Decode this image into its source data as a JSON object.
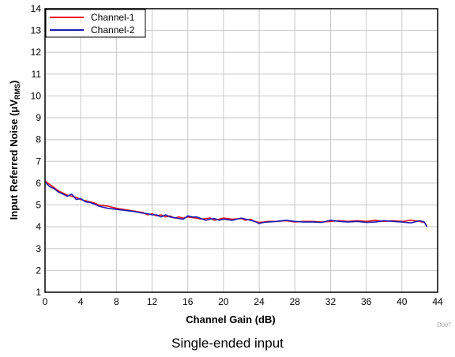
{
  "chart_data": {
    "type": "line",
    "xlabel": "Channel Gain (dB)",
    "ylabel_main": "Input Referred Noise (μV",
    "ylabel_sub": "RMS",
    "ylabel_end": ")",
    "xlim": [
      0,
      44
    ],
    "ylim": [
      1,
      14
    ],
    "xticks": [
      0,
      4,
      8,
      12,
      16,
      20,
      24,
      28,
      32,
      36,
      40,
      44
    ],
    "yticks": [
      1,
      2,
      3,
      4,
      5,
      6,
      7,
      8,
      9,
      10,
      11,
      12,
      13,
      14
    ],
    "grid": true,
    "legend_position": "top-left",
    "series": [
      {
        "name": "Channel-1",
        "color": "#e8141c",
        "x": [
          0,
          0.5,
          1,
          1.5,
          2,
          2.5,
          3,
          3.5,
          4,
          4.5,
          5,
          5.5,
          6,
          7,
          8,
          9,
          10,
          11,
          11.5,
          12,
          12.5,
          13,
          13.5,
          14,
          14.5,
          15,
          15.5,
          16,
          16.5,
          17,
          17.5,
          18,
          18.5,
          19,
          19.5,
          20,
          21,
          22,
          22.5,
          23,
          23.5,
          24,
          24.5,
          25,
          26,
          27,
          28,
          29,
          30,
          31,
          32,
          33,
          34,
          35,
          36,
          37,
          38,
          39,
          40,
          41,
          42,
          42.5,
          42.8
        ],
        "values": [
          6.1,
          5.95,
          5.8,
          5.65,
          5.55,
          5.45,
          5.4,
          5.35,
          5.25,
          5.2,
          5.15,
          5.1,
          5.0,
          4.95,
          4.85,
          4.78,
          4.72,
          4.65,
          4.55,
          4.6,
          4.5,
          4.55,
          4.45,
          4.5,
          4.4,
          4.45,
          4.4,
          4.45,
          4.42,
          4.4,
          4.35,
          4.38,
          4.4,
          4.3,
          4.35,
          4.4,
          4.35,
          4.38,
          4.3,
          4.35,
          4.25,
          4.2,
          4.22,
          4.25,
          4.25,
          4.28,
          4.22,
          4.25,
          4.25,
          4.22,
          4.25,
          4.28,
          4.25,
          4.28,
          4.25,
          4.3,
          4.25,
          4.28,
          4.25,
          4.3,
          4.25,
          4.2,
          4.05
        ]
      },
      {
        "name": "Channel-2",
        "color": "#1c1cb4",
        "x": [
          0,
          0.5,
          1,
          1.5,
          2,
          2.5,
          3,
          3.5,
          4,
          4.5,
          5,
          5.5,
          6,
          7,
          8,
          9,
          10,
          11,
          11.5,
          12,
          12.5,
          13,
          13.5,
          14,
          14.5,
          15,
          15.5,
          16,
          16.5,
          17,
          17.5,
          18,
          18.5,
          19,
          19.5,
          20,
          21,
          22,
          22.5,
          23,
          23.5,
          24,
          24.5,
          25,
          26,
          27,
          28,
          29,
          30,
          31,
          32,
          33,
          34,
          35,
          36,
          37,
          38,
          39,
          40,
          41,
          42,
          42.5,
          42.8
        ],
        "values": [
          6.05,
          5.85,
          5.75,
          5.6,
          5.5,
          5.4,
          5.5,
          5.25,
          5.3,
          5.15,
          5.12,
          5.05,
          4.95,
          4.85,
          4.8,
          4.75,
          4.7,
          4.62,
          4.6,
          4.55,
          4.55,
          4.45,
          4.55,
          4.45,
          4.42,
          4.38,
          4.35,
          4.5,
          4.45,
          4.45,
          4.38,
          4.3,
          4.35,
          4.38,
          4.3,
          4.35,
          4.3,
          4.4,
          4.35,
          4.3,
          4.25,
          4.15,
          4.2,
          4.22,
          4.25,
          4.3,
          4.25,
          4.22,
          4.22,
          4.2,
          4.3,
          4.25,
          4.22,
          4.25,
          4.2,
          4.22,
          4.28,
          4.25,
          4.22,
          4.18,
          4.28,
          4.22,
          4.0
        ]
      }
    ]
  },
  "caption": "Single-ended input",
  "watermark": "D007"
}
